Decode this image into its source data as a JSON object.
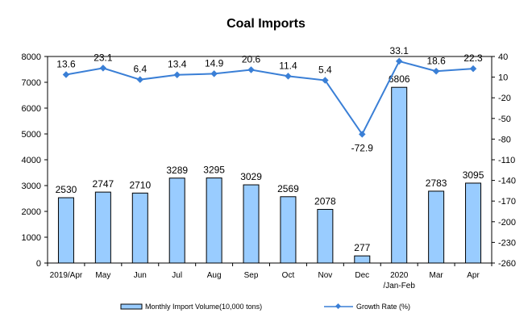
{
  "chart_data": {
    "type": "bar",
    "title": "Coal Imports",
    "categories": [
      "2019/Apr",
      "May",
      "Jun",
      "Jul",
      "Aug",
      "Sep",
      "Oct",
      "Nov",
      "Dec",
      "2020\n/Jan-Feb",
      "Mar",
      "Apr"
    ],
    "series": [
      {
        "name": "Monthly Import Volume(10,000 tons)",
        "type": "bar",
        "axis": "left",
        "values": [
          2530,
          2747,
          2710,
          3289,
          3295,
          3029,
          2569,
          2078,
          277,
          6806,
          2783,
          3095
        ]
      },
      {
        "name": "Growth Rate (%)",
        "type": "line",
        "axis": "right",
        "values": [
          13.6,
          23.1,
          6.4,
          13.4,
          14.9,
          20.6,
          11.4,
          5.4,
          -72.9,
          33.1,
          18.6,
          22.3
        ]
      }
    ],
    "y_left": {
      "min": 0,
      "max": 8000,
      "ticks": [
        0,
        1000,
        2000,
        3000,
        4000,
        5000,
        6000,
        7000,
        8000
      ]
    },
    "y_right": {
      "min": -260,
      "max": 40,
      "ticks": [
        40,
        10,
        -20,
        -50,
        -80,
        -110,
        -140,
        -170,
        -200,
        -230,
        -260
      ]
    },
    "grid": false,
    "legend_position": "bottom",
    "colors": {
      "bar_fill": "#99ccff",
      "bar_stroke": "#000000",
      "line": "#3a7fd6"
    }
  }
}
